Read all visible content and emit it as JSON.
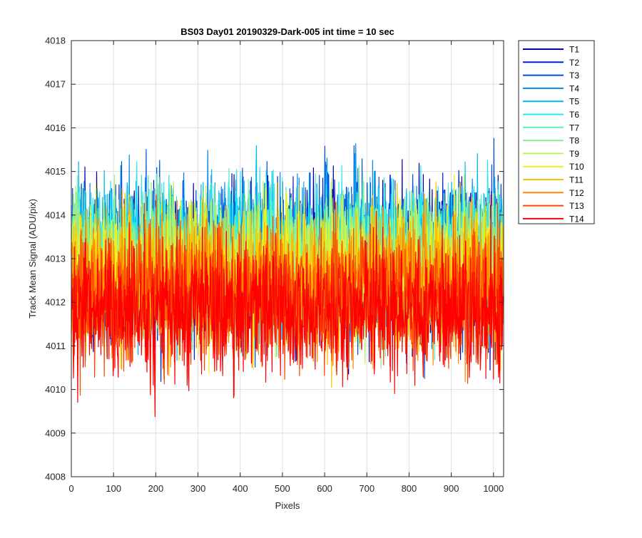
{
  "chart_data": {
    "type": "line",
    "title": "BS03 Day01 20190329-Dark-005 int time = 10 sec",
    "xlabel": "Pixels",
    "ylabel": "Track Mean Signal (ADU/pix)",
    "xlim": [
      0,
      1024
    ],
    "ylim": [
      4008,
      4018
    ],
    "x_ticks": [
      0,
      100,
      200,
      300,
      400,
      500,
      600,
      700,
      800,
      900,
      1000
    ],
    "y_ticks": [
      4008,
      4009,
      4010,
      4011,
      4012,
      4013,
      4014,
      4015,
      4016,
      4017,
      4018
    ],
    "grid": true,
    "legend_position": "outside-top-right",
    "n_points_per_series": 1024,
    "series": [
      {
        "name": "T1",
        "color": "#0000AA",
        "mean": 4012.9,
        "spread": 1.25
      },
      {
        "name": "T2",
        "color": "#0022CC",
        "mean": 4012.9,
        "spread": 1.2
      },
      {
        "name": "T3",
        "color": "#0050E0",
        "mean": 4013.0,
        "spread": 1.2
      },
      {
        "name": "T4",
        "color": "#0088EE",
        "mean": 4013.1,
        "spread": 1.15
      },
      {
        "name": "T5",
        "color": "#00B8F0",
        "mean": 4013.1,
        "spread": 1.15
      },
      {
        "name": "T6",
        "color": "#22E8F0",
        "mean": 4013.1,
        "spread": 1.1
      },
      {
        "name": "T7",
        "color": "#55F0C8",
        "mean": 4013.0,
        "spread": 1.1
      },
      {
        "name": "T8",
        "color": "#88F098",
        "mean": 4012.9,
        "spread": 1.1
      },
      {
        "name": "T9",
        "color": "#BBF060",
        "mean": 4012.8,
        "spread": 1.1
      },
      {
        "name": "T10",
        "color": "#F0F020",
        "mean": 4012.6,
        "spread": 1.1
      },
      {
        "name": "T11",
        "color": "#F8C000",
        "mean": 4012.5,
        "spread": 1.1
      },
      {
        "name": "T12",
        "color": "#FF8800",
        "mean": 4012.3,
        "spread": 1.1
      },
      {
        "name": "T13",
        "color": "#FF4400",
        "mean": 4012.1,
        "spread": 1.1
      },
      {
        "name": "T14",
        "color": "#FF0000",
        "mean": 4011.8,
        "spread": 1.1
      }
    ]
  }
}
